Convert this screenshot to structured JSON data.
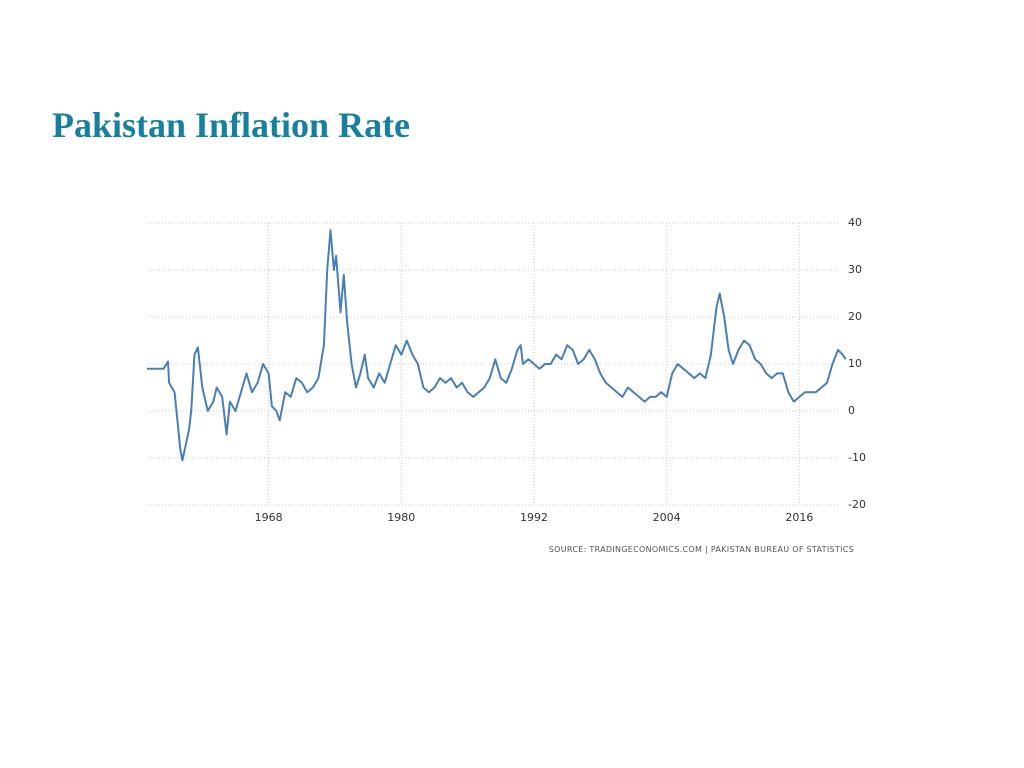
{
  "chart_data": {
    "type": "line",
    "title": "Pakistan Inflation Rate",
    "source": "SOURCE: TRADINGECONOMICS.COM | PAKISTAN BUREAU OF STATISTICS",
    "xlim": [
      1957,
      2020.4
    ],
    "xticks": [
      1968,
      1980,
      1992,
      2004,
      2016
    ],
    "ylim": [
      -20,
      40
    ],
    "yticks": [
      -20,
      -10,
      0,
      10,
      20,
      30,
      40
    ],
    "grid": true,
    "series": [
      {
        "color": "#4a7fb5",
        "x": [
          1957,
          1958.5,
          1958.9,
          1959,
          1959.5,
          1960,
          1960.2,
          1960.8,
          1961,
          1961.3,
          1961.6,
          1962,
          1962.5,
          1963,
          1963.3,
          1963.8,
          1964.2,
          1964.5,
          1965,
          1965.5,
          1966,
          1966.5,
          1967,
          1967.5,
          1968,
          1968.3,
          1968.7,
          1969,
          1969.5,
          1970,
          1970.5,
          1971,
          1971.5,
          1972,
          1972.5,
          1973,
          1973.3,
          1973.6,
          1973.9,
          1974.1,
          1974.5,
          1974.8,
          1975.1,
          1975.5,
          1975.9,
          1976.3,
          1976.7,
          1977,
          1977.5,
          1978,
          1978.5,
          1979,
          1979.5,
          1980,
          1980.5,
          1981,
          1981.5,
          1982,
          1982.5,
          1983,
          1983.5,
          1984,
          1984.5,
          1985,
          1985.5,
          1986,
          1986.5,
          1987,
          1987.5,
          1988,
          1988.5,
          1989,
          1989.5,
          1990,
          1990.5,
          1990.8,
          1991,
          1991.5,
          1992,
          1992.5,
          1993,
          1993.5,
          1994,
          1994.5,
          1995,
          1995.5,
          1996,
          1996.5,
          1997,
          1997.5,
          1998,
          1998.5,
          1999,
          1999.5,
          2000,
          2000.5,
          2001,
          2001.5,
          2002,
          2002.5,
          2003,
          2003.5,
          2004,
          2004.5,
          2005,
          2005.5,
          2006,
          2006.5,
          2007,
          2007.5,
          2008,
          2008.5,
          2008.8,
          2009.2,
          2009.6,
          2010,
          2010.5,
          2011,
          2011.5,
          2012,
          2012.5,
          2013,
          2013.5,
          2014,
          2014.5,
          2015,
          2015.5,
          2016,
          2016.5,
          2017,
          2017.5,
          2018,
          2018.5,
          2019,
          2019.5,
          2019.9,
          2020.2
        ],
        "values": [
          9,
          9,
          10.5,
          6,
          4,
          -8,
          -10.5,
          -4,
          0,
          12,
          13.5,
          5,
          0,
          2,
          5,
          3,
          -5,
          2,
          0,
          4,
          8,
          4,
          6,
          10,
          8,
          1,
          0,
          -2,
          4,
          3,
          7,
          6,
          4,
          5,
          7,
          14,
          30,
          38.5,
          30,
          33,
          21,
          29,
          19,
          10,
          5,
          8,
          12,
          7,
          5,
          8,
          6,
          10,
          14,
          12,
          15,
          12,
          10,
          5,
          4,
          5,
          7,
          6,
          7,
          5,
          6,
          4,
          3,
          4,
          5,
          7,
          11,
          7,
          6,
          9,
          13,
          14,
          10,
          11,
          10,
          9,
          10,
          10,
          12,
          11,
          14,
          13,
          10,
          11,
          13,
          11,
          8,
          6,
          5,
          4,
          3,
          5,
          4,
          3,
          2,
          3,
          3,
          4,
          3,
          8,
          10,
          9,
          8,
          7,
          8,
          7,
          12,
          22,
          25,
          20,
          13,
          10,
          13,
          15,
          14,
          11,
          10,
          8,
          7,
          8,
          8,
          4,
          2,
          3,
          4,
          4,
          4,
          5,
          6,
          10,
          13,
          12,
          11
        ]
      }
    ]
  }
}
